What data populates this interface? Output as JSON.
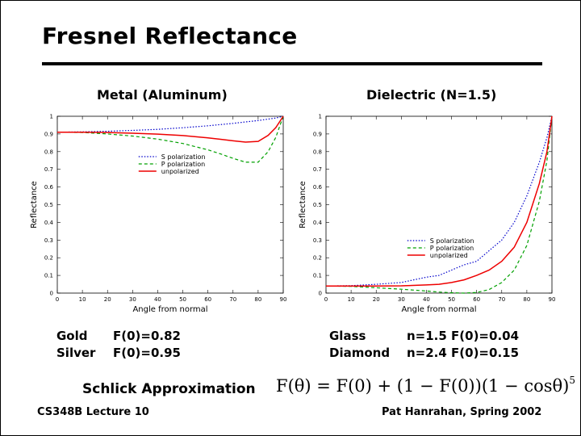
{
  "slide": {
    "title": "Fresnel Reflectance",
    "footer_left": "CS348B Lecture 10",
    "footer_right": "Pat Hanrahan, Spring 2002"
  },
  "chart_data": [
    {
      "type": "line",
      "title": "Metal (Aluminum)",
      "xlabel": "Angle from normal",
      "ylabel": "Reflectance",
      "xlim": [
        0,
        90
      ],
      "ylim": [
        0,
        1
      ],
      "xticks": [
        "0",
        "10",
        "20",
        "30",
        "40",
        "50",
        "60",
        "70",
        "80",
        "90"
      ],
      "yticks": [
        "0",
        "0.1",
        "0.2",
        "0.3",
        "0.4",
        "0.5",
        "0.6",
        "0.7",
        "0.8",
        "0.9",
        "1"
      ],
      "legend_position": "center-right",
      "x": [
        0,
        10,
        20,
        30,
        40,
        50,
        60,
        65,
        70,
        75,
        80,
        84,
        87,
        90
      ],
      "series": [
        {
          "name": "S polarization",
          "color": "#0000cc",
          "dash": "1.5,2",
          "values": [
            0.91,
            0.912,
            0.915,
            0.92,
            0.926,
            0.935,
            0.946,
            0.953,
            0.96,
            0.968,
            0.976,
            0.984,
            0.99,
            1.0
          ]
        },
        {
          "name": "P polarization",
          "color": "#00a000",
          "dash": "4,3",
          "values": [
            0.91,
            0.908,
            0.9,
            0.888,
            0.871,
            0.846,
            0.81,
            0.787,
            0.762,
            0.74,
            0.74,
            0.8,
            0.88,
            1.0
          ]
        },
        {
          "name": "unpolarized",
          "color": "#ee0000",
          "dash": "",
          "values": [
            0.91,
            0.91,
            0.908,
            0.904,
            0.899,
            0.891,
            0.878,
            0.87,
            0.861,
            0.854,
            0.858,
            0.892,
            0.935,
            1.0
          ]
        }
      ]
    },
    {
      "type": "line",
      "title": "Dielectric (N=1.5)",
      "xlabel": "Angle from normal",
      "ylabel": "Reflectance",
      "xlim": [
        0,
        90
      ],
      "ylim": [
        0,
        1
      ],
      "xticks": [
        "0",
        "10",
        "20",
        "30",
        "40",
        "50",
        "60",
        "70",
        "80",
        "90"
      ],
      "yticks": [
        "0",
        "0.1",
        "0.2",
        "0.3",
        "0.4",
        "0.5",
        "0.6",
        "0.7",
        "0.8",
        "0.9",
        "1"
      ],
      "legend_position": "center-right",
      "x": [
        0,
        10,
        20,
        30,
        40,
        45,
        50,
        55,
        60,
        65,
        70,
        75,
        80,
        85,
        88,
        90
      ],
      "series": [
        {
          "name": "S polarization",
          "color": "#0000cc",
          "dash": "1.5,2",
          "values": [
            0.04,
            0.042,
            0.05,
            0.06,
            0.09,
            0.1,
            0.13,
            0.16,
            0.18,
            0.24,
            0.3,
            0.4,
            0.55,
            0.74,
            0.88,
            1.0
          ]
        },
        {
          "name": "P polarization",
          "color": "#00a000",
          "dash": "4,3",
          "values": [
            0.04,
            0.038,
            0.03,
            0.022,
            0.012,
            0.006,
            0.002,
            0.0,
            0.003,
            0.02,
            0.06,
            0.13,
            0.27,
            0.52,
            0.75,
            1.0
          ]
        },
        {
          "name": "unpolarized",
          "color": "#ee0000",
          "dash": "",
          "values": [
            0.04,
            0.04,
            0.04,
            0.041,
            0.046,
            0.05,
            0.06,
            0.075,
            0.1,
            0.13,
            0.18,
            0.26,
            0.4,
            0.62,
            0.8,
            1.0
          ]
        }
      ]
    }
  ],
  "materials_left": [
    {
      "name": "Gold",
      "value": "F(0)=0.82"
    },
    {
      "name": "Silver",
      "value": "F(0)=0.95"
    }
  ],
  "materials_right": [
    {
      "name": "Glass",
      "value": "n=1.5 F(0)=0.04"
    },
    {
      "name": "Diamond",
      "value": "n=2.4 F(0)=0.15"
    }
  ],
  "schlick": {
    "label": "Schlick Approximation",
    "formula_a": "F(θ) = F(0) + (1 − F(0))(1 − cosθ)",
    "formula_exp": "5"
  }
}
